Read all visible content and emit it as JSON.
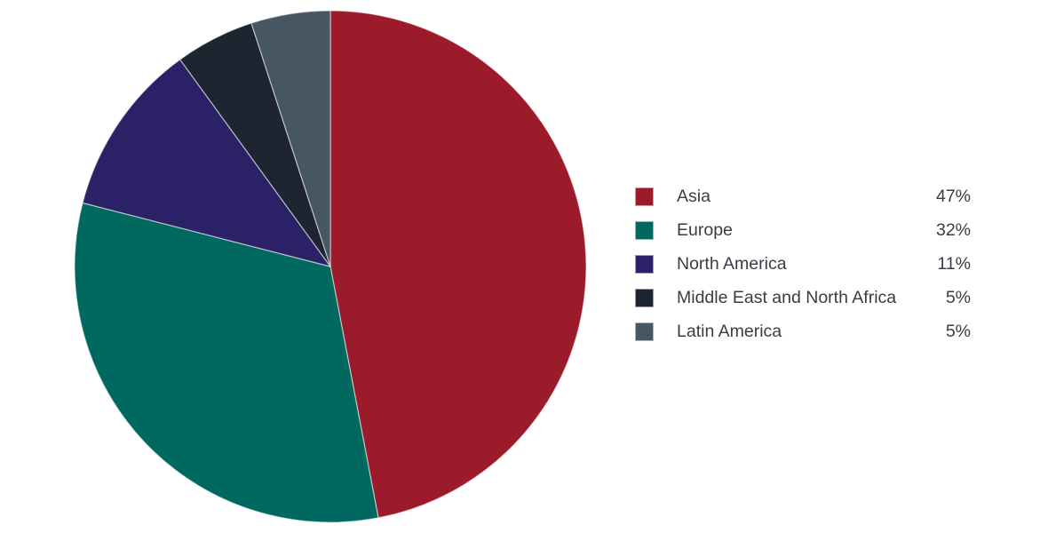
{
  "background_color": "#ffffff",
  "text_color": "#363d44",
  "chart_data": {
    "type": "pie",
    "title": "",
    "units": "percent",
    "start_angle_deg": 0,
    "direction": "clockwise",
    "legend_position": "right",
    "slices": [
      {
        "label": "Asia",
        "value": 47,
        "display": "47%",
        "color": "#9b1b2b"
      },
      {
        "label": "Europe",
        "value": 32,
        "display": "32%",
        "color": "#00695f"
      },
      {
        "label": "North America",
        "value": 11,
        "display": "11%",
        "color": "#2b2167"
      },
      {
        "label": "Middle East and North Africa",
        "value": 5,
        "display": "5%",
        "color": "#1c2530"
      },
      {
        "label": "Latin America",
        "value": 5,
        "display": "5%",
        "color": "#475663"
      }
    ]
  }
}
